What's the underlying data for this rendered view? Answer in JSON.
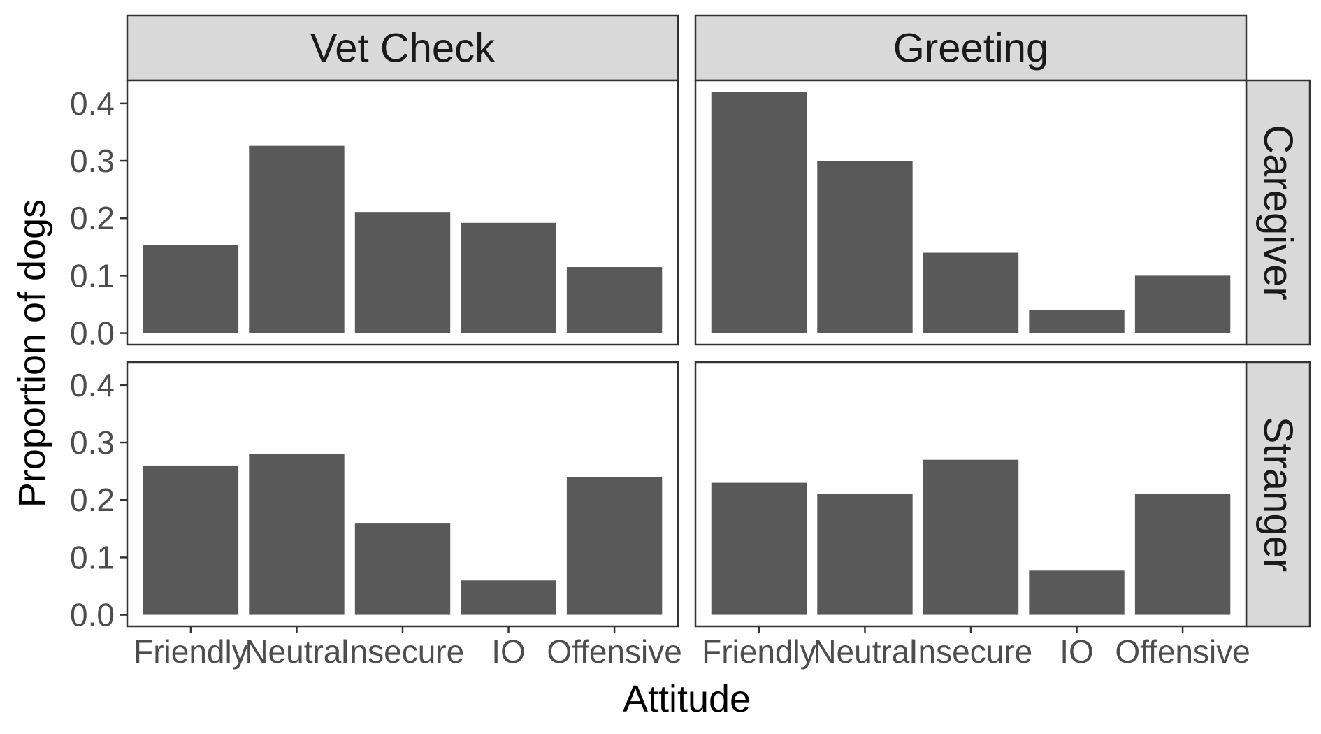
{
  "chart_data": {
    "type": "bar",
    "facet_columns": [
      "Vet Check",
      "Greeting"
    ],
    "facet_rows": [
      "Caregiver",
      "Stranger"
    ],
    "categories": [
      "Friendly",
      "Neutral",
      "Insecure",
      "IO",
      "Offensive"
    ],
    "panels": [
      {
        "column": "Vet Check",
        "row": "Caregiver",
        "values": [
          0.154,
          0.326,
          0.211,
          0.192,
          0.115
        ]
      },
      {
        "column": "Greeting",
        "row": "Caregiver",
        "values": [
          0.42,
          0.3,
          0.14,
          0.04,
          0.1
        ]
      },
      {
        "column": "Vet Check",
        "row": "Stranger",
        "values": [
          0.26,
          0.28,
          0.16,
          0.06,
          0.24
        ]
      },
      {
        "column": "Greeting",
        "row": "Stranger",
        "values": [
          0.23,
          0.21,
          0.27,
          0.077,
          0.21
        ]
      }
    ],
    "xlabel": "Attitude",
    "ylabel": "Proportion of dogs",
    "ylim": [
      -0.02,
      0.44
    ],
    "yticks": [
      0.0,
      0.1,
      0.2,
      0.3,
      0.4
    ],
    "ytick_labels": [
      "0.0",
      "0.1",
      "0.2",
      "0.3",
      "0.4"
    ],
    "bar_color": "#595959",
    "strip_fill": "#d9d9d9",
    "panel_border": "#333333",
    "grid": false,
    "legend": "none"
  }
}
